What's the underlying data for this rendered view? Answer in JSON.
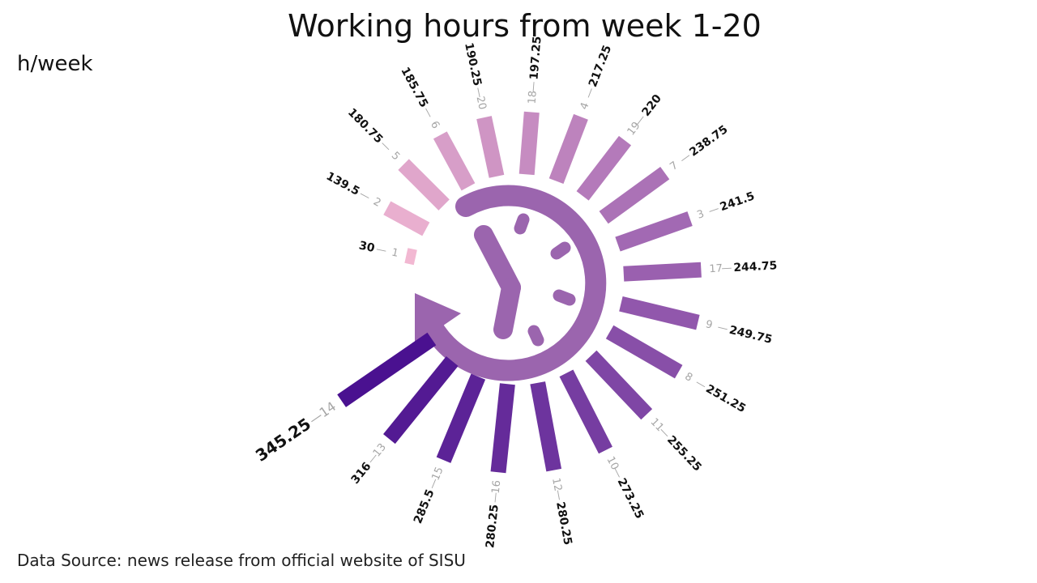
{
  "chart_data": {
    "type": "bar",
    "layout": "radial",
    "title": "Working hours from week 1-20",
    "ylabel": "h/week",
    "source": "Data Source: news release from official website of SISU",
    "categories": [
      "1",
      "2",
      "5",
      "6",
      "20",
      "18",
      "4",
      "19",
      "7",
      "3",
      "17",
      "9",
      "8",
      "11",
      "10",
      "12",
      "16",
      "15",
      "13",
      "14"
    ],
    "values": [
      30,
      139.5,
      180.75,
      185.75,
      190.25,
      197.25,
      217.25,
      220,
      238.75,
      241.5,
      244.75,
      249.75,
      251.25,
      255.25,
      273.25,
      280.25,
      280.25,
      285.5,
      316,
      345.25
    ],
    "value_labels": [
      "30",
      "139.5",
      "180.75",
      "185.75",
      "190.25",
      "197.25",
      "217.25",
      "220",
      "238.75",
      "241.5",
      "244.75",
      "249.75",
      "251.25",
      "255.25",
      "273.25",
      "280.25",
      "280.25",
      "285.5",
      "316",
      "345.25"
    ],
    "sort": "ascending, clockwise",
    "color_scale": [
      "#f2b8d2",
      "#4a1190"
    ],
    "center_icon": "clock-arrow-icon"
  },
  "colors": {
    "icon": "#9b65ae",
    "week_label": "#a6a6a6",
    "value_label": "#111111"
  }
}
